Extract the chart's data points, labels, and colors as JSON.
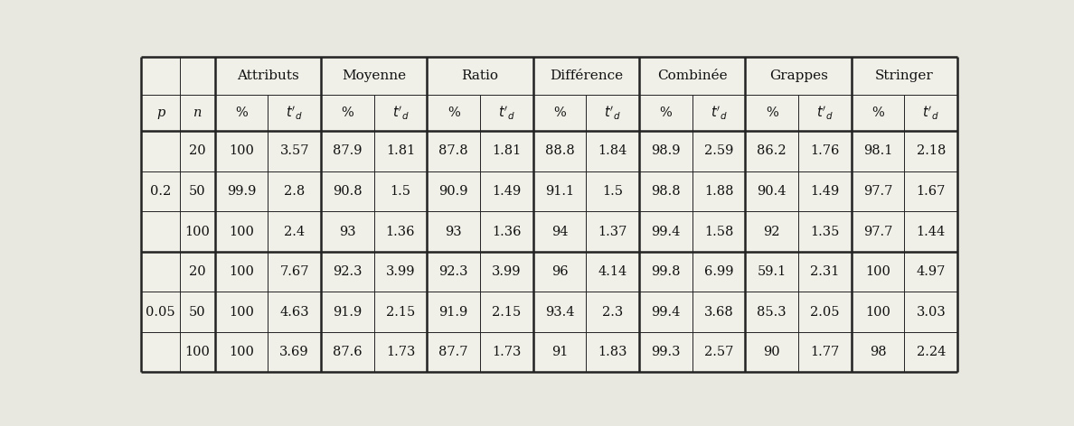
{
  "col_groups": [
    "Attributs",
    "Moyenne",
    "Ratio",
    "Différence",
    "Combinée",
    "Grappes",
    "Stringer"
  ],
  "row_headers_n": [
    "20",
    "50",
    "100",
    "20",
    "50",
    "100"
  ],
  "p_labels": [
    "0.2",
    "0.05"
  ],
  "data": [
    [
      "100",
      "3.57",
      "87.9",
      "1.81",
      "87.8",
      "1.81",
      "88.8",
      "1.84",
      "98.9",
      "2.59",
      "86.2",
      "1.76",
      "98.1",
      "2.18"
    ],
    [
      "99.9",
      "2.8",
      "90.8",
      "1.5",
      "90.9",
      "1.49",
      "91.1",
      "1.5",
      "98.8",
      "1.88",
      "90.4",
      "1.49",
      "97.7",
      "1.67"
    ],
    [
      "100",
      "2.4",
      "93",
      "1.36",
      "93",
      "1.36",
      "94",
      "1.37",
      "99.4",
      "1.58",
      "92",
      "1.35",
      "97.7",
      "1.44"
    ],
    [
      "100",
      "7.67",
      "92.3",
      "3.99",
      "92.3",
      "3.99",
      "96",
      "4.14",
      "99.8",
      "6.99",
      "59.1",
      "2.31",
      "100",
      "4.97"
    ],
    [
      "100",
      "4.63",
      "91.9",
      "2.15",
      "91.9",
      "2.15",
      "93.4",
      "2.3",
      "99.4",
      "3.68",
      "85.3",
      "2.05",
      "100",
      "3.03"
    ],
    [
      "100",
      "3.69",
      "87.6",
      "1.73",
      "87.7",
      "1.73",
      "91",
      "1.83",
      "99.3",
      "2.57",
      "90",
      "1.77",
      "98",
      "2.24"
    ]
  ],
  "bg_color": "#e8e8e0",
  "table_bg": "#f0f0e8",
  "text_color": "#111111",
  "line_color": "#222222",
  "lw_thin": 0.7,
  "lw_thick": 1.8,
  "lw_outer": 1.8,
  "fs_data": 10.5,
  "fs_header": 11.0,
  "fs_subheader": 10.5
}
